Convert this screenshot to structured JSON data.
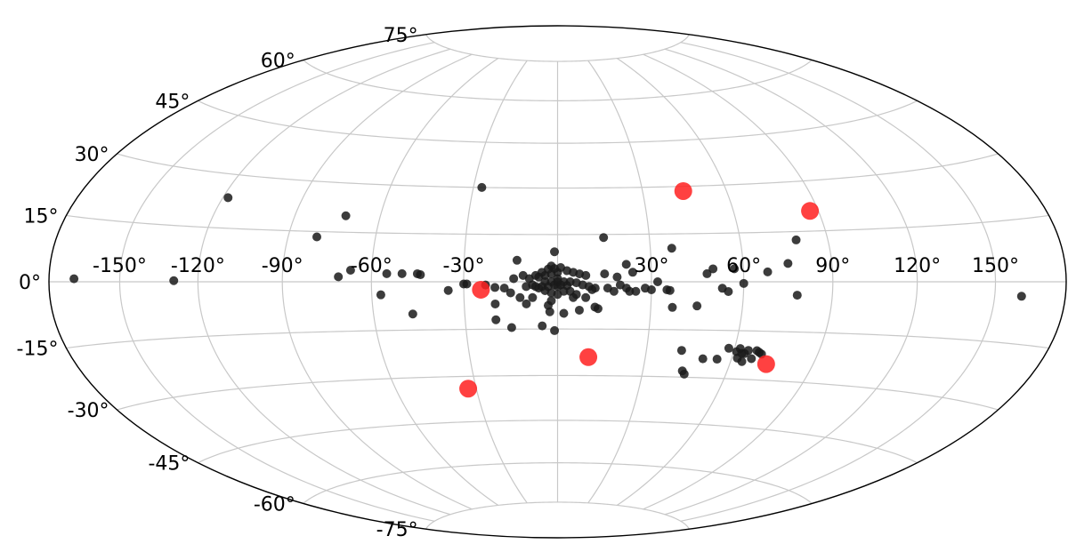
{
  "chart_data": {
    "type": "scatter",
    "projection": "hammer-aitoff",
    "title": "",
    "xlabel": "",
    "ylabel": "",
    "xlim": [
      -180,
      180
    ],
    "ylim": [
      -90,
      90
    ],
    "grid": true,
    "legend": "none",
    "x_ticks": [
      -150,
      -120,
      -90,
      -60,
      -30,
      30,
      60,
      90,
      120,
      150
    ],
    "x_tick_labels": [
      "-150°",
      "-120°",
      "-90°",
      "-60°",
      "-30°",
      "30°",
      "60°",
      "90°",
      "120°",
      "150°"
    ],
    "y_ticks": [
      75,
      60,
      45,
      30,
      15,
      0,
      -15,
      -30,
      -45,
      -60,
      -75
    ],
    "y_tick_labels": [
      "75°",
      "60°",
      "45°",
      "30°",
      "15°",
      "0°",
      "-15°",
      "-30°",
      "-45°",
      "-60°",
      "-75°"
    ],
    "colors": {
      "black_series": "#1a1a1a",
      "red_series": "#ff2020",
      "grid": "#c8c8c8",
      "outline": "#000000"
    },
    "series": [
      {
        "color": "#1a1a1a",
        "points": [
          [
            -169,
            0.7
          ],
          [
            -129,
            0.3
          ],
          [
            -118,
            23.5
          ],
          [
            -72,
            20
          ],
          [
            -80,
            13.4
          ],
          [
            -67,
            3.5
          ],
          [
            -71,
            1.5
          ],
          [
            -57,
            -4
          ],
          [
            -55,
            2.5
          ],
          [
            -50,
            2.5
          ],
          [
            -45,
            2.5
          ],
          [
            -47,
            -10
          ],
          [
            -44,
            2.2
          ],
          [
            -27,
            30
          ],
          [
            -35,
            -2.7
          ],
          [
            -30,
            -0.7
          ],
          [
            -29,
            -0.7
          ],
          [
            -23,
            -1
          ],
          [
            -20,
            -1.8
          ],
          [
            -17,
            -2
          ],
          [
            -15,
            -3.5
          ],
          [
            -12,
            -5
          ],
          [
            -10,
            -7
          ],
          [
            -8,
            -5
          ],
          [
            -20,
            -7
          ],
          [
            -20,
            -12
          ],
          [
            -15,
            -14.5
          ],
          [
            -5,
            -14
          ],
          [
            -1,
            -15.5
          ],
          [
            -10,
            -1.5
          ],
          [
            -8,
            -1
          ],
          [
            -6,
            -2
          ],
          [
            -4,
            -2.8
          ],
          [
            -2,
            -3.5
          ],
          [
            0,
            -4
          ],
          [
            2,
            -3
          ],
          [
            4,
            -3
          ],
          [
            6,
            -4
          ],
          [
            -6,
            1.5
          ],
          [
            -4,
            2
          ],
          [
            -2,
            2.5
          ],
          [
            0,
            3
          ],
          [
            -11,
            2
          ],
          [
            -14,
            1
          ],
          [
            -13,
            6.8
          ],
          [
            -9,
            1
          ],
          [
            -7,
            2
          ],
          [
            -5,
            3
          ],
          [
            -3,
            4
          ],
          [
            -1,
            4.2
          ],
          [
            1,
            4.5
          ],
          [
            3,
            3.5
          ],
          [
            5,
            3
          ],
          [
            7,
            2.5
          ],
          [
            9,
            2
          ],
          [
            -4,
            0
          ],
          [
            -2,
            0
          ],
          [
            0,
            0
          ],
          [
            2,
            0
          ],
          [
            4,
            0
          ],
          [
            6,
            -0.3
          ],
          [
            8,
            -1
          ],
          [
            10,
            -1.5
          ],
          [
            12,
            -2
          ],
          [
            -7,
            -1.5
          ],
          [
            -5,
            -1.5
          ],
          [
            -3,
            -1.5
          ],
          [
            -1,
            -1
          ],
          [
            1,
            -1
          ],
          [
            3,
            -1.2
          ],
          [
            -2,
            -6
          ],
          [
            -2.5,
            -9.5
          ],
          [
            2,
            -10
          ],
          [
            7,
            -9
          ],
          [
            12,
            -8
          ],
          [
            13,
            -8.5
          ],
          [
            -3,
            -7.5
          ],
          [
            -2,
            5
          ],
          [
            0,
            -1.5
          ],
          [
            0,
            1
          ],
          [
            -1,
            9.5
          ],
          [
            5,
            -5
          ],
          [
            9,
            -5
          ],
          [
            11,
            -2.5
          ],
          [
            15,
            2.5
          ],
          [
            18,
            -3
          ],
          [
            20,
            -1
          ],
          [
            22,
            -2
          ],
          [
            23,
            -3
          ],
          [
            25,
            -3
          ],
          [
            28,
            -2
          ],
          [
            30,
            -2.5
          ],
          [
            19,
            1.5
          ],
          [
            16,
            -2
          ],
          [
            22,
            5.5
          ],
          [
            24,
            3
          ],
          [
            32,
            0
          ],
          [
            35,
            -2.5
          ],
          [
            36,
            -2.7
          ],
          [
            37,
            -8
          ],
          [
            45,
            -7.5
          ],
          [
            48,
            2.5
          ],
          [
            50,
            4
          ],
          [
            53,
            -2
          ],
          [
            55,
            -3
          ],
          [
            57,
            4
          ],
          [
            60,
            -0.5
          ],
          [
            37,
            10.5
          ],
          [
            42,
            -21.5
          ],
          [
            44,
            -28
          ],
          [
            45,
            -29
          ],
          [
            50,
            -24
          ],
          [
            55,
            -24
          ],
          [
            58,
            -20.5
          ],
          [
            61,
            -21.5
          ],
          [
            62,
            -20.5
          ],
          [
            63,
            -22
          ],
          [
            64,
            -22
          ],
          [
            65,
            -21
          ],
          [
            68,
            -21
          ],
          [
            69,
            -21.5
          ],
          [
            70,
            -22
          ],
          [
            62,
            -23.5
          ],
          [
            64,
            -24.5
          ],
          [
            67,
            -23.5
          ],
          [
            79,
            12.5
          ],
          [
            75,
            5.5
          ],
          [
            68,
            3
          ],
          [
            78,
            -4
          ],
          [
            161,
            -3.5
          ],
          [
            15,
            14
          ]
        ]
      },
      {
        "color": "#ff2020",
        "points": [
          [
            -24.5,
            -2.5
          ],
          [
            10.5,
            -24
          ],
          [
            -33,
            -34
          ],
          [
            44.5,
            28.5
          ],
          [
            87,
            21
          ],
          [
            73,
            -25
          ]
        ]
      }
    ]
  }
}
